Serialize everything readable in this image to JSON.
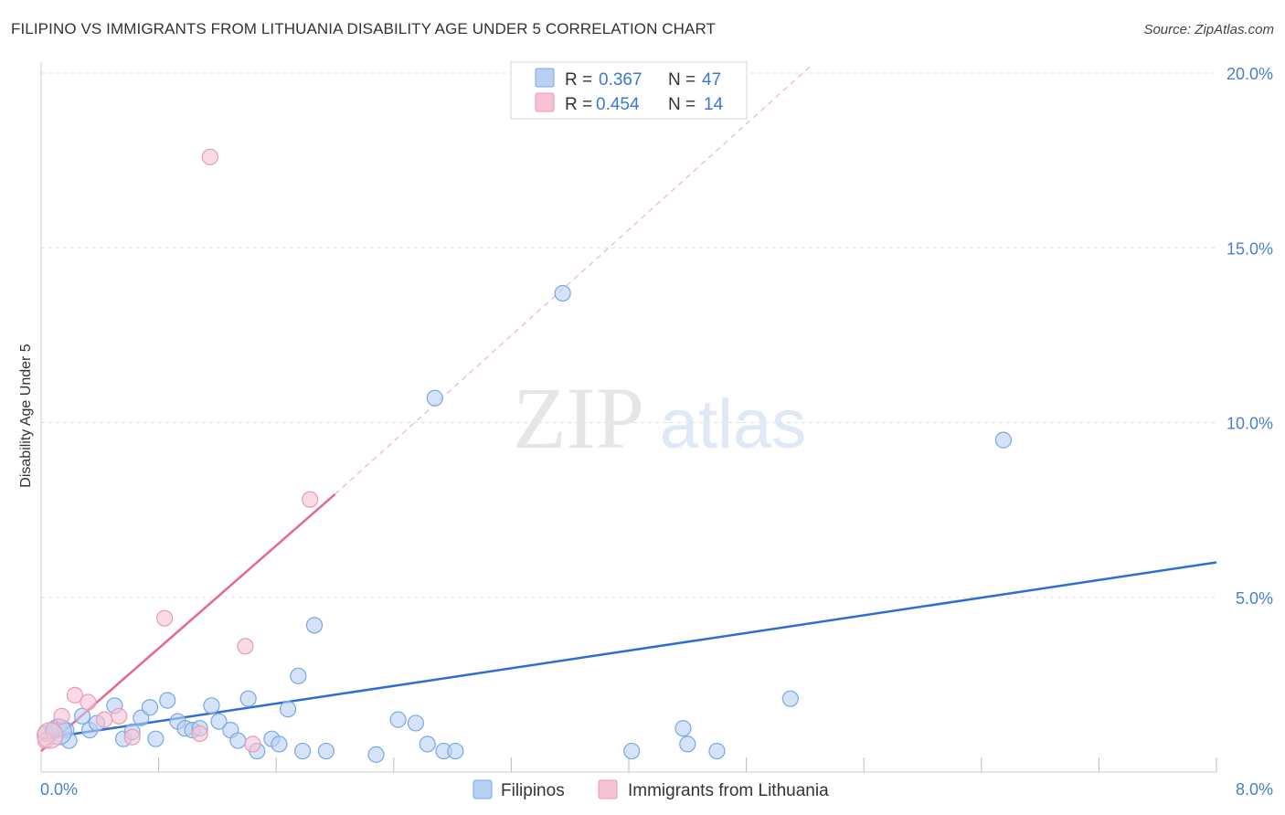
{
  "header": {
    "title": "FILIPINO VS IMMIGRANTS FROM LITHUANIA DISABILITY AGE UNDER 5 CORRELATION CHART",
    "source": "Source: ZipAtlas.com"
  },
  "watermark": {
    "zip": "ZIP",
    "atlas": "atlas"
  },
  "colors": {
    "blue_fill": "#b8d0f2",
    "blue_stroke": "#7aa7e3",
    "blue_line": "#2d6fd1",
    "pink_fill": "#f7c3d3",
    "pink_stroke": "#ea9ab4",
    "pink_line": "#e5698f",
    "grid": "#dddddd",
    "tick_text": "#4a7fd0"
  },
  "stats": [
    {
      "series": "Filipinos",
      "r_label": "R =",
      "r_value": "0.367",
      "n_label": "N =",
      "n_value": "47"
    },
    {
      "series": "Immigrants from Lithuania",
      "r_label": "R =",
      "r_value": "0.454",
      "n_label": "N =",
      "n_value": "14"
    }
  ],
  "chart_data": {
    "type": "scatter",
    "title": "FILIPINO VS IMMIGRANTS FROM LITHUANIA DISABILITY AGE UNDER 5 CORRELATION CHART",
    "xlabel": "",
    "ylabel": "Disability Age Under 5",
    "xlim": [
      0,
      8
    ],
    "ylim": [
      0,
      20
    ],
    "x_tick_labels": [
      "0.0%",
      "8.0%"
    ],
    "y_ticks": [
      5,
      10,
      15,
      20
    ],
    "y_tick_labels": [
      "5.0%",
      "10.0%",
      "15.0%",
      "20.0%"
    ],
    "legend": [
      "Filipinos",
      "Immigrants from Lithuania"
    ],
    "series": [
      {
        "name": "Filipinos",
        "color": "#b8d0f2",
        "trend": {
          "x0": 0.0,
          "y0": 0.95,
          "x1": 8.0,
          "y1": 6.0
        },
        "points": [
          [
            0.03,
            1.1
          ],
          [
            0.08,
            1.2
          ],
          [
            0.12,
            1.3
          ],
          [
            0.17,
            1.2
          ],
          [
            0.19,
            0.9
          ],
          [
            0.28,
            1.6
          ],
          [
            0.33,
            1.2
          ],
          [
            0.38,
            1.4
          ],
          [
            0.5,
            1.9
          ],
          [
            0.56,
            0.95
          ],
          [
            0.62,
            1.15
          ],
          [
            0.68,
            1.55
          ],
          [
            0.74,
            1.85
          ],
          [
            0.78,
            0.95
          ],
          [
            0.86,
            2.05
          ],
          [
            0.93,
            1.45
          ],
          [
            0.98,
            1.25
          ],
          [
            1.03,
            1.2
          ],
          [
            1.08,
            1.25
          ],
          [
            1.16,
            1.9
          ],
          [
            1.21,
            1.45
          ],
          [
            1.29,
            1.2
          ],
          [
            1.34,
            0.9
          ],
          [
            1.41,
            2.1
          ],
          [
            1.47,
            0.6
          ],
          [
            1.57,
            0.95
          ],
          [
            1.62,
            0.8
          ],
          [
            1.68,
            1.8
          ],
          [
            1.75,
            2.75
          ],
          [
            1.86,
            4.2
          ],
          [
            1.78,
            0.6
          ],
          [
            1.94,
            0.6
          ],
          [
            2.28,
            0.5
          ],
          [
            2.43,
            1.5
          ],
          [
            2.55,
            1.4
          ],
          [
            2.63,
            0.8
          ],
          [
            2.74,
            0.6
          ],
          [
            2.82,
            0.6
          ],
          [
            2.68,
            10.7
          ],
          [
            3.55,
            13.7
          ],
          [
            4.02,
            0.6
          ],
          [
            4.37,
            1.25
          ],
          [
            4.4,
            0.8
          ],
          [
            4.6,
            0.6
          ],
          [
            5.1,
            2.1
          ],
          [
            6.55,
            9.5
          ],
          [
            0.12,
            1.15
          ]
        ]
      },
      {
        "name": "Immigrants from Lithuania",
        "color": "#f7c3d3",
        "trend": {
          "x0": 0.0,
          "y0": 0.6,
          "x1": 2.0,
          "y1": 7.95
        },
        "trend_extension": {
          "x0": 2.0,
          "y0": 7.95,
          "x1": 5.25,
          "y1": 20.25
        },
        "points": [
          [
            0.03,
            0.9
          ],
          [
            0.14,
            1.6
          ],
          [
            0.23,
            2.2
          ],
          [
            0.32,
            2.0
          ],
          [
            0.43,
            1.5
          ],
          [
            0.53,
            1.6
          ],
          [
            0.62,
            1.0
          ],
          [
            0.84,
            4.4
          ],
          [
            1.08,
            1.1
          ],
          [
            1.15,
            17.6
          ],
          [
            1.39,
            3.6
          ],
          [
            1.44,
            0.8
          ],
          [
            1.83,
            7.8
          ],
          [
            0.06,
            1.05
          ]
        ]
      }
    ]
  }
}
